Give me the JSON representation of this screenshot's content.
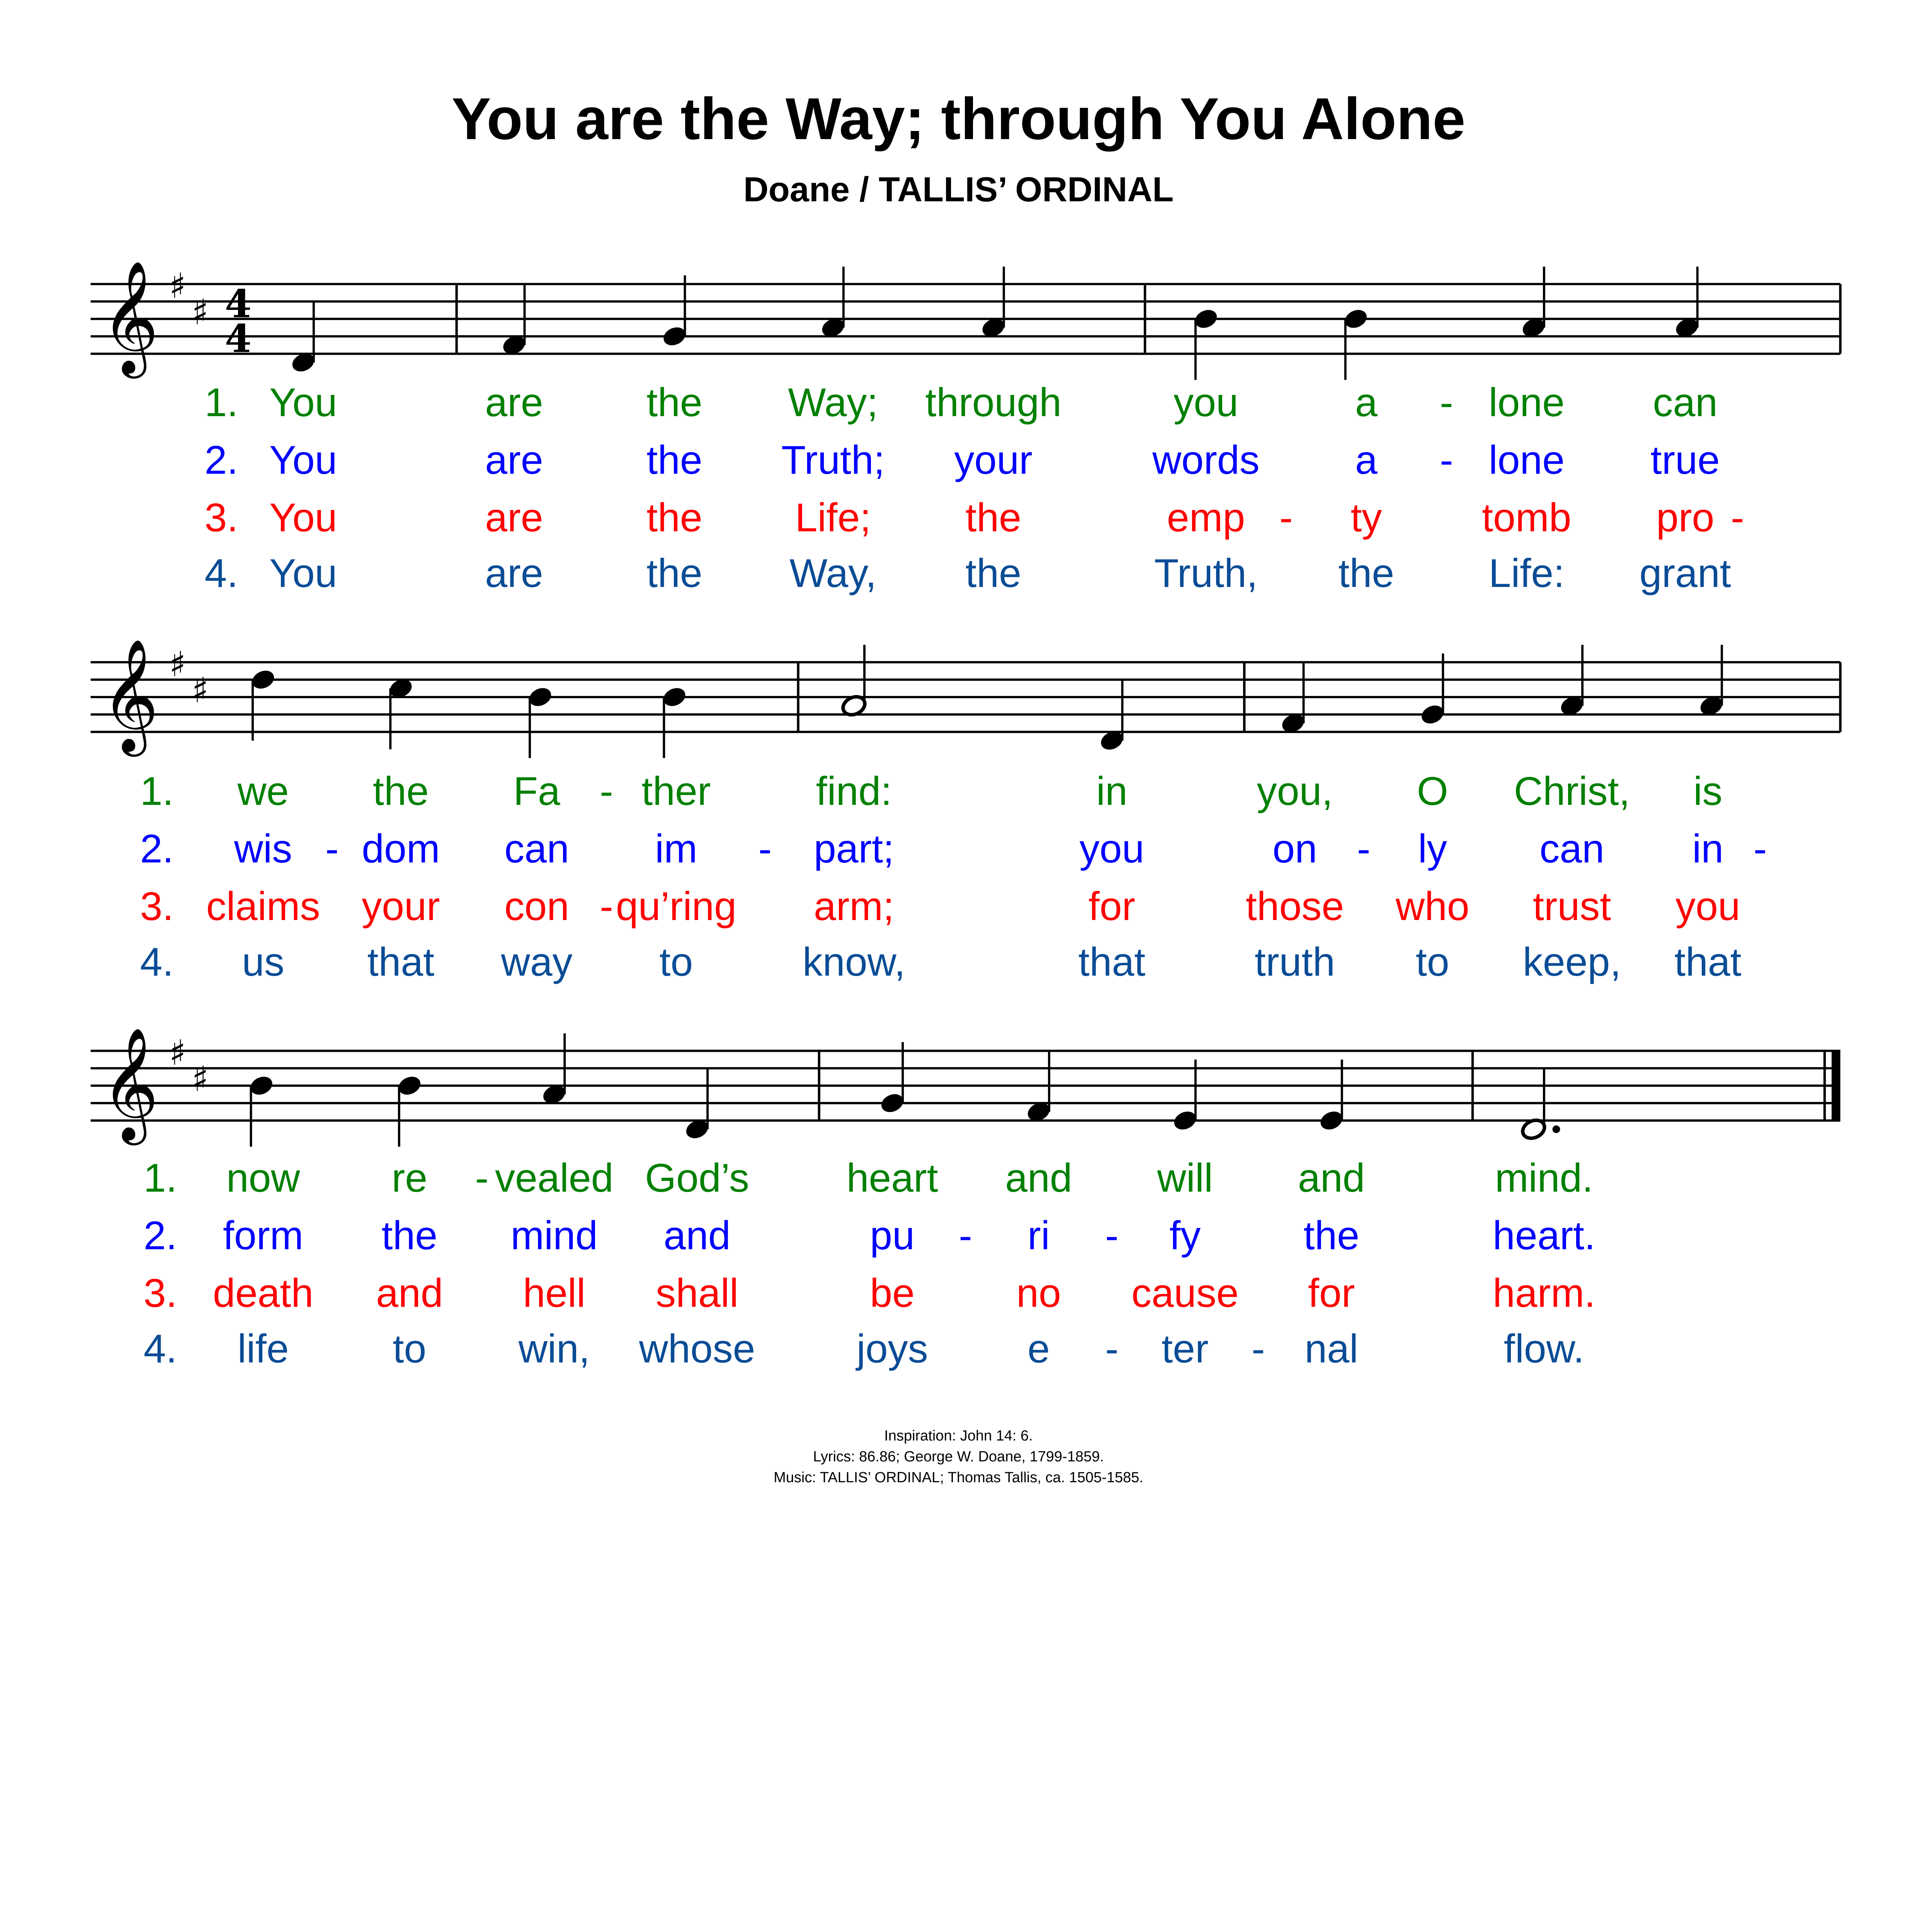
{
  "title": "You are the Way; through You Alone",
  "subtitle": "Doane / TALLIS’ ORDINAL",
  "key_signature": "D major (2 sharps)",
  "time_signature": "4/4",
  "verse_colors": [
    "#008000",
    "#0000FF",
    "#FF0000",
    "#0A4C96"
  ],
  "verse_numbers": [
    "1.",
    "2.",
    "3.",
    "4."
  ],
  "systems": [
    {
      "notes": [
        {
          "pitch": "D4",
          "dur": "quarter"
        },
        {
          "bar": true
        },
        {
          "pitch": "F#4",
          "dur": "quarter"
        },
        {
          "pitch": "G4",
          "dur": "quarter"
        },
        {
          "pitch": "A4",
          "dur": "quarter"
        },
        {
          "pitch": "A4",
          "dur": "quarter"
        },
        {
          "bar": true
        },
        {
          "pitch": "B4",
          "dur": "quarter"
        },
        {
          "pitch": "B4",
          "dur": "quarter"
        },
        {
          "pitch": "A4",
          "dur": "quarter"
        },
        {
          "pitch": "A4",
          "dur": "quarter"
        }
      ],
      "verses": [
        [
          "You",
          "are",
          "the",
          "Way;",
          "through",
          "you",
          "a-",
          "lone",
          "can"
        ],
        [
          "You",
          "are",
          "the",
          "Truth;",
          "your",
          "words",
          "a-",
          "lone",
          "true"
        ],
        [
          "You",
          "are",
          "the",
          "Life;",
          "the",
          "emp-",
          "ty",
          "tomb",
          "pro-"
        ],
        [
          "You",
          "are",
          "the",
          "Way,",
          "the",
          "Truth,",
          "the",
          "Life:",
          "grant"
        ]
      ]
    },
    {
      "notes": [
        {
          "pitch": "D5",
          "dur": "quarter"
        },
        {
          "pitch": "C#5",
          "dur": "quarter"
        },
        {
          "pitch": "B4",
          "dur": "quarter"
        },
        {
          "pitch": "B4",
          "dur": "quarter"
        },
        {
          "bar": true
        },
        {
          "pitch": "A4",
          "dur": "half"
        },
        {
          "pitch": "D4",
          "dur": "quarter"
        },
        {
          "bar": true
        },
        {
          "pitch": "F#4",
          "dur": "quarter"
        },
        {
          "pitch": "G4",
          "dur": "quarter"
        },
        {
          "pitch": "A4",
          "dur": "quarter"
        },
        {
          "pitch": "A4",
          "dur": "quarter"
        }
      ],
      "verses": [
        [
          "we",
          "the",
          "Fa-",
          "ther",
          "find:",
          "in",
          "you,",
          "O",
          "Christ,",
          "is"
        ],
        [
          "wis-",
          "dom",
          "can",
          "im-",
          "part;",
          "you",
          "on-",
          "ly",
          "can",
          "in-"
        ],
        [
          "claims",
          "your",
          "con-",
          "qu’ring",
          "arm;",
          "for",
          "those",
          "who",
          "trust",
          "you"
        ],
        [
          "us",
          "that",
          "way",
          "to",
          "know,",
          "that",
          "truth",
          "to",
          "keep,",
          "that"
        ]
      ]
    },
    {
      "notes": [
        {
          "pitch": "B4",
          "dur": "quarter"
        },
        {
          "pitch": "B4",
          "dur": "quarter"
        },
        {
          "pitch": "A4",
          "dur": "quarter"
        },
        {
          "pitch": "D4",
          "dur": "quarter"
        },
        {
          "bar": true
        },
        {
          "pitch": "G4",
          "dur": "quarter"
        },
        {
          "pitch": "F#4",
          "dur": "quarter"
        },
        {
          "pitch": "E4",
          "dur": "quarter"
        },
        {
          "pitch": "E4",
          "dur": "quarter"
        },
        {
          "bar": true
        },
        {
          "pitch": "D4",
          "dur": "dotted-half"
        }
      ],
      "verses": [
        [
          "now",
          "re-",
          "vealed",
          "God’s",
          "heart",
          "and",
          "will",
          "and",
          "mind."
        ],
        [
          "form",
          "the",
          "mind",
          "and",
          "pu-",
          "ri-",
          "fy",
          "the",
          "heart."
        ],
        [
          "death",
          "and",
          "hell",
          "shall",
          "be",
          "no",
          "cause",
          "for",
          "harm."
        ],
        [
          "life",
          "to",
          "win,",
          "whose",
          "joys",
          "e-",
          "ter-",
          "nal",
          "flow."
        ]
      ]
    }
  ],
  "footer": {
    "inspiration": "Inspiration:  John 14: 6.",
    "lyrics": "Lyrics:  86.86; George W. Doane, 1799-1859.",
    "music": "Music:  TALLIS’ ORDINAL; Thomas Tallis, ca. 1505-1585."
  }
}
